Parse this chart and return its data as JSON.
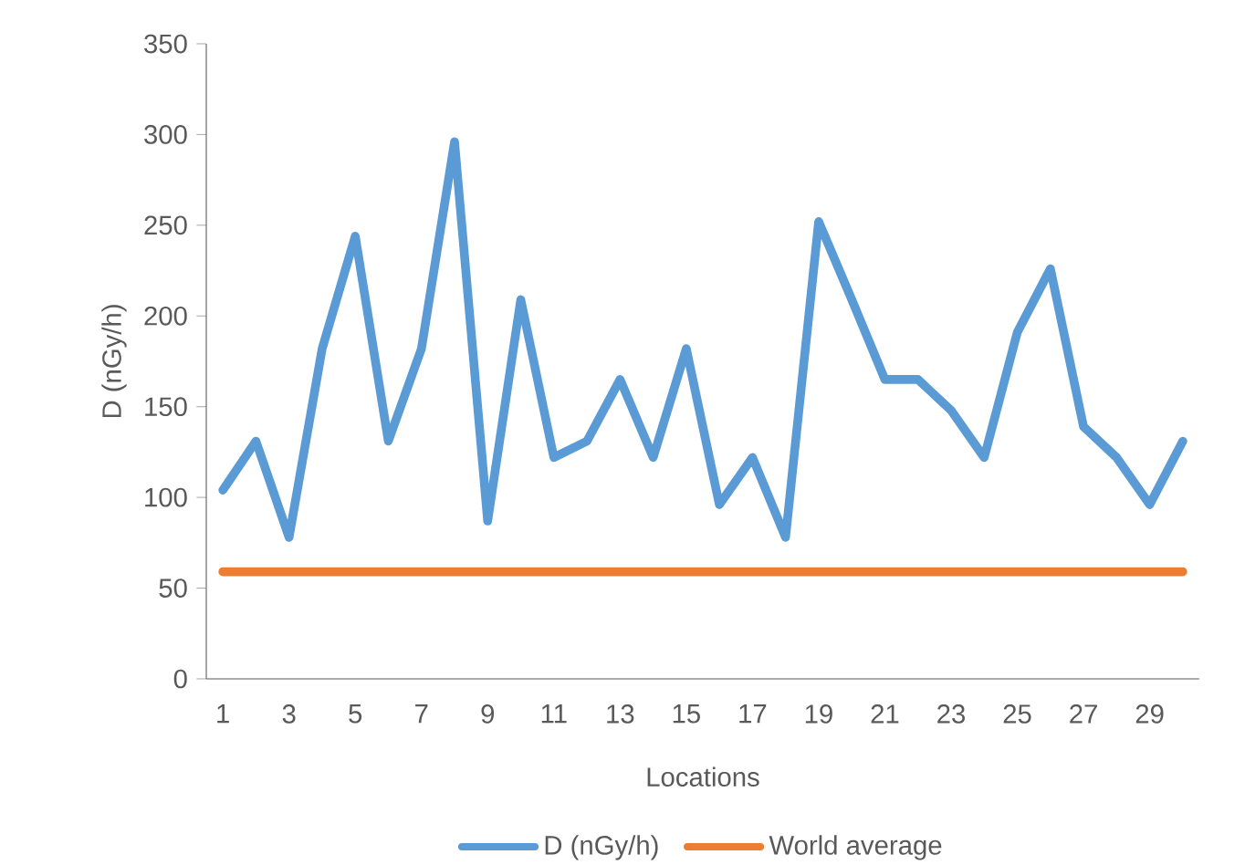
{
  "chart_data": {
    "type": "line",
    "xlabel": "Locations",
    "ylabel": "D (nGy/h)",
    "categories": [
      "1",
      null,
      "3",
      null,
      "5",
      null,
      "7",
      null,
      "9",
      null,
      "11",
      null,
      "13",
      null,
      "15",
      null,
      "17",
      null,
      "19",
      null,
      "21",
      null,
      "23",
      null,
      "25",
      null,
      "27",
      null,
      "29",
      null
    ],
    "series": [
      {
        "name": "D (nGy/h)",
        "color": "#5b9bd5",
        "values": [
          104,
          131,
          78,
          182,
          244,
          131,
          182,
          296,
          87,
          209,
          122,
          131,
          165,
          122,
          182,
          96,
          122,
          78,
          252,
          209,
          165,
          165,
          148,
          122,
          191,
          226,
          139,
          122,
          96,
          131
        ]
      },
      {
        "name": "World average",
        "color": "#ed7d31",
        "values": [
          59,
          59,
          59,
          59,
          59,
          59,
          59,
          59,
          59,
          59,
          59,
          59,
          59,
          59,
          59,
          59,
          59,
          59,
          59,
          59,
          59,
          59,
          59,
          59,
          59,
          59,
          59,
          59,
          59,
          59
        ]
      }
    ],
    "ylim": [
      0,
      350
    ],
    "yticks": [
      0,
      50,
      100,
      150,
      200,
      250,
      300,
      350
    ],
    "grid": false,
    "legend": "bottom",
    "marker": "none",
    "line_style": "solid"
  }
}
